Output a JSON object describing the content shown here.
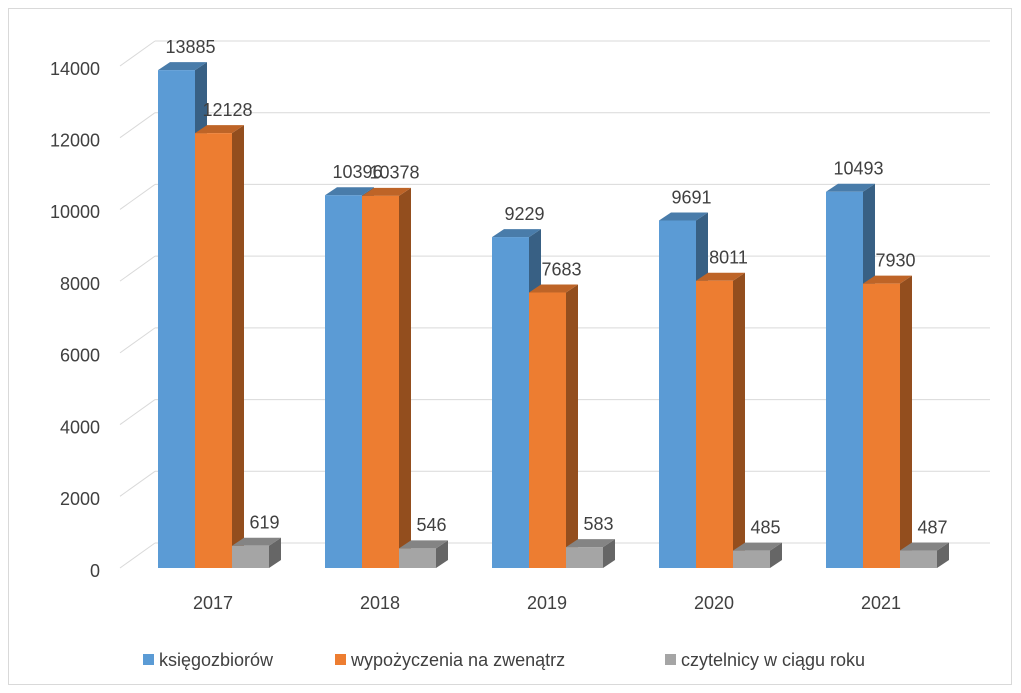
{
  "chart_data": {
    "type": "bar3d",
    "categories": [
      "2017",
      "2018",
      "2019",
      "2020",
      "2021"
    ],
    "series": [
      {
        "name": "księgozbiorów",
        "color": "#5b9bd5",
        "values": [
          13885,
          10396,
          9229,
          9691,
          10493
        ]
      },
      {
        "name": "wypożyczenia na zwenątrz",
        "color": "#ed7d31",
        "values": [
          12128,
          10378,
          7683,
          8011,
          7930
        ]
      },
      {
        "name": "czytelnicy w ciągu roku",
        "color": "#a5a5a5",
        "values": [
          619,
          546,
          583,
          485,
          487
        ]
      }
    ],
    "ylim": [
      0,
      14000
    ],
    "yticks": [
      0,
      2000,
      4000,
      6000,
      8000,
      10000,
      12000,
      14000
    ],
    "grid": true,
    "legend": "bottom"
  }
}
